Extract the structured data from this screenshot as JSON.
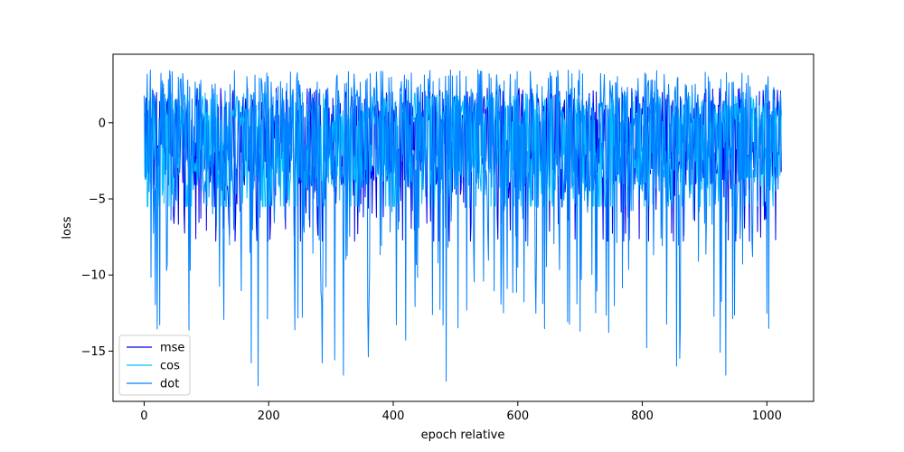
{
  "chart_data": {
    "type": "line",
    "title": "",
    "xlabel": "epoch relative",
    "ylabel": "loss",
    "xlim": [
      -50,
      1075
    ],
    "ylim": [
      -18.3,
      4.5
    ],
    "xticks": [
      0,
      200,
      400,
      600,
      800,
      1000
    ],
    "yticks": [
      -15,
      -10,
      -5,
      0
    ],
    "grid": false,
    "legend_position": "lower-left",
    "n_points": 1024,
    "series": [
      {
        "name": "mse",
        "color": "#0000ee",
        "y_max_approx": 2.3,
        "y_min_approx": -7.8,
        "y_mean_approx": -1.0
      },
      {
        "name": "cos",
        "color": "#00bfff",
        "y_max_approx": 2.0,
        "y_min_approx": -5.5,
        "y_mean_approx": -1.2
      },
      {
        "name": "dot",
        "color": "#0080ff",
        "y_max_approx": 3.5,
        "y_min_approx": -17.3,
        "y_mean_approx": -1.3,
        "notable_minima": [
          {
            "x": 183,
            "y": -17.3
          },
          {
            "x": 485,
            "y": -17.0
          },
          {
            "x": 320,
            "y": -16.6
          },
          {
            "x": 934,
            "y": -16.6
          },
          {
            "x": 855,
            "y": -16.0
          },
          {
            "x": 172,
            "y": -15.8
          },
          {
            "x": 286,
            "y": -15.8
          },
          {
            "x": 306,
            "y": -15.6
          },
          {
            "x": 360,
            "y": -15.4
          },
          {
            "x": 860,
            "y": -15.5
          },
          {
            "x": 925,
            "y": -15.1
          },
          {
            "x": 807,
            "y": -14.8
          },
          {
            "x": 420,
            "y": -14.3
          },
          {
            "x": 25,
            "y": -13.3
          },
          {
            "x": 480,
            "y": -13.3
          },
          {
            "x": 504,
            "y": -13.5
          },
          {
            "x": 680,
            "y": -13.1
          },
          {
            "x": 198,
            "y": -12.9
          },
          {
            "x": 577,
            "y": -12.5
          },
          {
            "x": 725,
            "y": -12.5
          },
          {
            "x": 945,
            "y": -12.9
          }
        ]
      }
    ]
  }
}
